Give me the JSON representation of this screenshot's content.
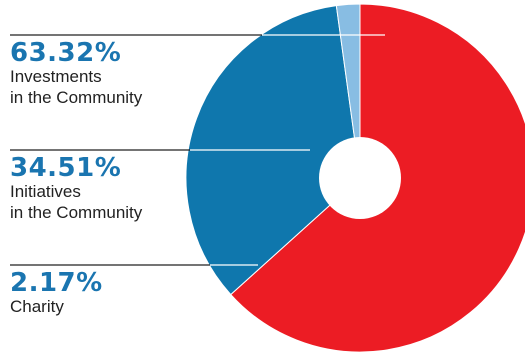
{
  "chart_data": {
    "type": "pie",
    "variant": "donut",
    "title": "",
    "slices": [
      {
        "label_pct": "63.32%",
        "label_lines": [
          "Investments",
          "in the Community"
        ],
        "value": 63.32,
        "color": "#ec1c24"
      },
      {
        "label_pct": "34.51%",
        "label_lines": [
          "Initiatives",
          "in the Community"
        ],
        "value": 34.51,
        "color": "#0f77ad"
      },
      {
        "label_pct": "2.17%",
        "label_lines": [
          "Charity"
        ],
        "value": 2.17,
        "color": "#88bde3"
      }
    ],
    "legend_position": "left",
    "start": "12 o'clock",
    "direction": "clockwise"
  }
}
